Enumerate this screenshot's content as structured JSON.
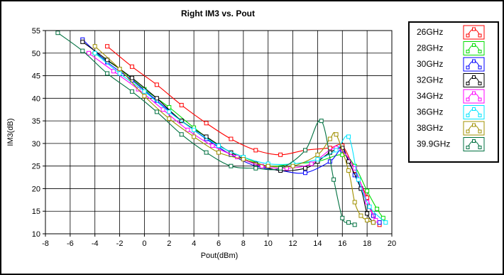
{
  "chart_data": {
    "type": "line",
    "title": "Right IM3 vs. Pout",
    "xlabel": "Pout(dBm)",
    "ylabel": "IM3(dB)",
    "xlim": [
      -8,
      20
    ],
    "ylim": [
      10,
      55
    ],
    "xticks": [
      -8,
      -6,
      -4,
      -2,
      0,
      2,
      4,
      6,
      8,
      10,
      12,
      14,
      16,
      18,
      20
    ],
    "yticks": [
      10,
      15,
      20,
      25,
      30,
      35,
      40,
      45,
      50,
      55
    ],
    "grid": true,
    "legend_position": "right",
    "series": [
      {
        "name": "26GHz",
        "color": "#ff0000",
        "x": [
          -3,
          -1,
          1,
          3,
          5,
          7,
          9,
          11,
          13,
          15,
          16,
          17,
          18,
          18.5,
          19
        ],
        "y": [
          51.5,
          47,
          43,
          38.5,
          34.5,
          31,
          28.5,
          27.5,
          28.5,
          29,
          29.5,
          24,
          18,
          14,
          12
        ]
      },
      {
        "name": "28GHz",
        "color": "#00dd00",
        "x": [
          -4,
          -2,
          0,
          2,
          4,
          6,
          8,
          10,
          12,
          14,
          16,
          17,
          18,
          18.8,
          19.3
        ],
        "y": [
          50,
          46.5,
          42,
          38,
          33.5,
          29.5,
          27,
          25,
          25.5,
          26,
          27.5,
          25,
          19.5,
          15.5,
          13.5
        ]
      },
      {
        "name": "30GHz",
        "color": "#0000ff",
        "x": [
          -5,
          -3,
          -1,
          1,
          3,
          5,
          7,
          9,
          11,
          13,
          15,
          16,
          17,
          17.5,
          18,
          18.5,
          19
        ],
        "y": [
          53,
          48,
          44,
          39.5,
          35,
          31,
          27.5,
          25,
          24,
          23.5,
          26,
          28.5,
          23,
          20,
          17,
          14,
          12.5
        ]
      },
      {
        "name": "32GHz",
        "color": "#000000",
        "x": [
          -5,
          -3,
          -1,
          1,
          3,
          5,
          7,
          9,
          11,
          13,
          14,
          15,
          16,
          16.5,
          17.5,
          18,
          18.5
        ],
        "y": [
          52.5,
          48.5,
          44.5,
          40,
          35,
          31.5,
          28,
          25.5,
          24,
          24.5,
          26,
          28,
          29,
          26,
          20,
          14.5,
          12.5
        ]
      },
      {
        "name": "34GHz",
        "color": "#ff00ff",
        "x": [
          -4.5,
          -2.5,
          -0.5,
          1.5,
          3.5,
          5.5,
          7.5,
          9.5,
          11.5,
          13.5,
          15.5,
          17,
          18,
          18.7
        ],
        "y": [
          50,
          46,
          42,
          37.5,
          33,
          29.5,
          27,
          25,
          24.5,
          25.5,
          29,
          24.5,
          17,
          13
        ]
      },
      {
        "name": "36GHz",
        "color": "#00e5ff",
        "x": [
          -4,
          -2,
          0,
          2,
          4,
          6,
          8,
          10,
          12,
          14,
          15.5,
          16.5,
          17.3,
          18.2,
          19.5
        ],
        "y": [
          50,
          45.5,
          41.5,
          37,
          33,
          29.5,
          27,
          25.5,
          25.5,
          26.5,
          28.5,
          31.5,
          22,
          16,
          12.5
        ]
      },
      {
        "name": "38GHz",
        "color": "#a09000",
        "x": [
          -4,
          -2,
          0,
          2,
          4,
          6,
          8,
          10,
          12,
          14,
          15,
          15.5,
          16.5,
          17,
          17.5,
          18,
          18.5
        ],
        "y": [
          51.5,
          46.5,
          40.5,
          35.5,
          31.5,
          28,
          26.5,
          25,
          25,
          27.5,
          31,
          32,
          24,
          17,
          14,
          13,
          12.5
        ]
      },
      {
        "name": "39.9GHz",
        "color": "#007040",
        "x": [
          -7,
          -5,
          -3,
          -1,
          1,
          3,
          5,
          7,
          9,
          11,
          13,
          14.3,
          15.3,
          16,
          16.5,
          17
        ],
        "y": [
          54.5,
          50.5,
          45.5,
          41.5,
          37,
          32,
          28,
          25,
          24.5,
          24.5,
          28.5,
          35,
          22,
          13.5,
          12.5,
          12
        ]
      }
    ]
  }
}
